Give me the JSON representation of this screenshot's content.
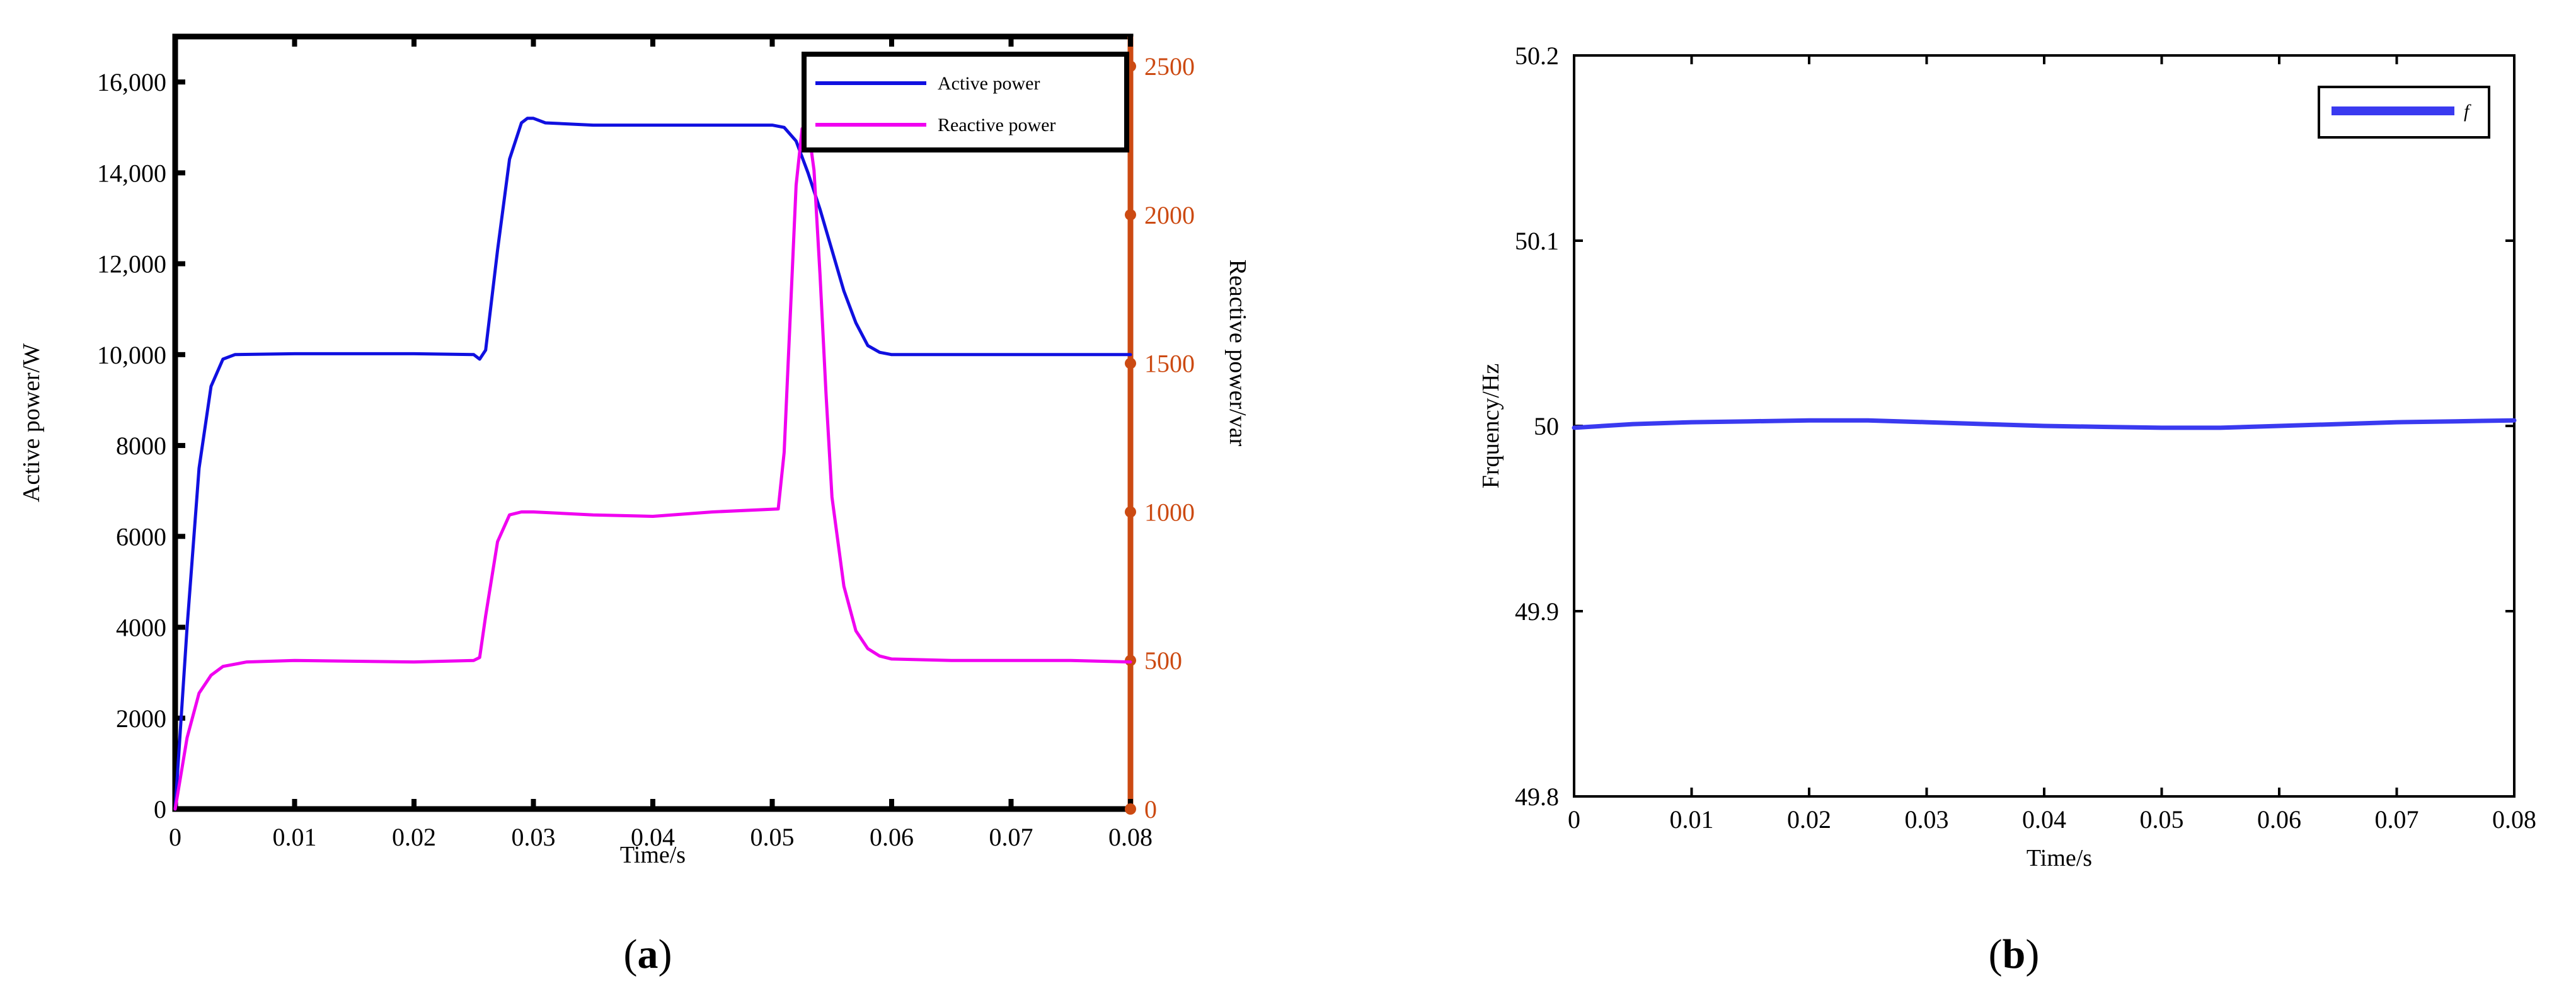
{
  "panels": {
    "a": {
      "label_open": "(",
      "label_letter": "a",
      "label_close": ")"
    },
    "b": {
      "label_open": "(",
      "label_letter": "b",
      "label_close": ")"
    }
  },
  "chart_data": [
    {
      "id": "a",
      "type": "line",
      "xlabel": "Time/s",
      "ylabel": "Active power/W",
      "y2label": "Reactive power/var",
      "xlim": [
        0,
        0.08
      ],
      "ylim": [
        0,
        17000
      ],
      "y2lim": [
        0,
        2600
      ],
      "xticks": [
        "0",
        "0.01",
        "0.02",
        "0.03",
        "0.04",
        "0.05",
        "0.06",
        "0.07",
        "0.08"
      ],
      "yticks": [
        "0",
        "2000",
        "4000",
        "6000",
        "8000",
        "10,000",
        "12,000",
        "14,000",
        "16,000"
      ],
      "y2ticks": [
        "0",
        "500",
        "1000",
        "1500",
        "2000",
        "2500"
      ],
      "legend_position": "top-right",
      "colors": {
        "active": "#1010e0",
        "reactive": "#f000f0",
        "right_axis": "#cc4a12"
      },
      "series": [
        {
          "name": "Active power",
          "axis": "left",
          "x": [
            0,
            0.001,
            0.002,
            0.003,
            0.004,
            0.005,
            0.01,
            0.02,
            0.025,
            0.0255,
            0.026,
            0.027,
            0.028,
            0.029,
            0.0295,
            0.03,
            0.031,
            0.035,
            0.04,
            0.045,
            0.05,
            0.051,
            0.052,
            0.053,
            0.054,
            0.055,
            0.056,
            0.057,
            0.058,
            0.059,
            0.06,
            0.065,
            0.07,
            0.075,
            0.08
          ],
          "y": [
            0,
            4000,
            7500,
            9300,
            9900,
            10000,
            10020,
            10020,
            10000,
            9900,
            10100,
            12300,
            14300,
            15100,
            15200,
            15200,
            15100,
            15050,
            15050,
            15050,
            15050,
            15000,
            14700,
            14000,
            13200,
            12300,
            11400,
            10700,
            10200,
            10050,
            10000,
            10000,
            10000,
            10000,
            10000
          ]
        },
        {
          "name": "Reactive power",
          "axis": "right",
          "x": [
            0,
            0.001,
            0.002,
            0.003,
            0.004,
            0.006,
            0.01,
            0.02,
            0.025,
            0.0255,
            0.026,
            0.027,
            0.028,
            0.029,
            0.03,
            0.035,
            0.04,
            0.045,
            0.0505,
            0.051,
            0.0515,
            0.052,
            0.0525,
            0.053,
            0.0535,
            0.054,
            0.0545,
            0.055,
            0.056,
            0.057,
            0.058,
            0.059,
            0.06,
            0.065,
            0.07,
            0.075,
            0.08
          ],
          "y": [
            0,
            240,
            390,
            450,
            480,
            495,
            500,
            495,
            500,
            510,
            650,
            900,
            990,
            1000,
            1000,
            990,
            985,
            1000,
            1010,
            1200,
            1650,
            2100,
            2290,
            2300,
            2150,
            1800,
            1400,
            1050,
            750,
            600,
            540,
            515,
            505,
            500,
            500,
            500,
            495
          ]
        }
      ]
    },
    {
      "id": "b",
      "type": "line",
      "xlabel": "Time/s",
      "ylabel": "Frquency/Hz",
      "xlim": [
        0,
        0.08
      ],
      "ylim": [
        49.8,
        50.2
      ],
      "xticks": [
        "0",
        "0.01",
        "0.02",
        "0.03",
        "0.04",
        "0.05",
        "0.06",
        "0.07",
        "0.08"
      ],
      "yticks": [
        "49.8",
        "49.9",
        "50",
        "50.1",
        "50.2"
      ],
      "legend_position": "top-right",
      "colors": {
        "f": "#3a3af0"
      },
      "series": [
        {
          "name": "f",
          "x": [
            0,
            0.005,
            0.01,
            0.015,
            0.02,
            0.025,
            0.03,
            0.035,
            0.04,
            0.045,
            0.05,
            0.055,
            0.06,
            0.065,
            0.07,
            0.075,
            0.08
          ],
          "y": [
            49.999,
            50.001,
            50.002,
            50.0025,
            50.003,
            50.003,
            50.002,
            50.001,
            50.0,
            49.9995,
            49.999,
            49.999,
            50.0,
            50.001,
            50.002,
            50.0025,
            50.003
          ]
        }
      ]
    }
  ]
}
